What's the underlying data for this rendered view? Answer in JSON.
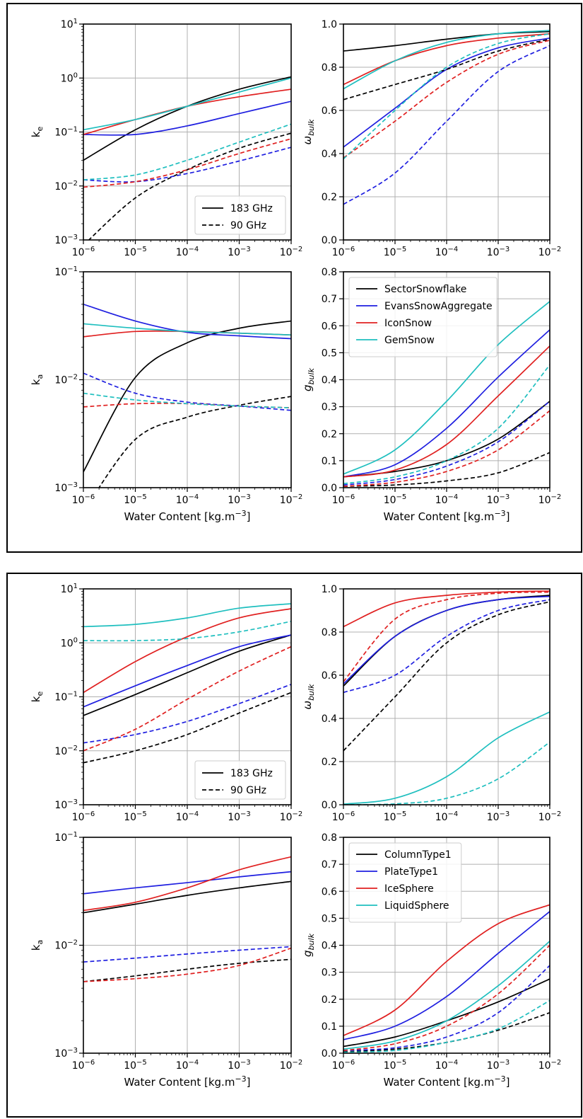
{
  "colors": {
    "k": "#000000",
    "b": "#1f1fe0",
    "r": "#e02020",
    "c": "#1fbfbf"
  },
  "legend_freq": [
    {
      "label": "183 GHz",
      "dash": "solid"
    },
    {
      "label": "90 GHz",
      "dash": "dashed"
    }
  ],
  "figures": [
    {
      "legend_habits": [
        {
          "label": "SectorSnowflake",
          "color": "k"
        },
        {
          "label": "EvansSnowAggregate",
          "color": "b"
        },
        {
          "label": "IconSnow",
          "color": "r"
        },
        {
          "label": "GemSnow",
          "color": "c"
        }
      ]
    },
    {
      "legend_habits": [
        {
          "label": "ColumnType1",
          "color": "k"
        },
        {
          "label": "PlateType1",
          "color": "b"
        },
        {
          "label": "IceSphere",
          "color": "r"
        },
        {
          "label": "LiquidSphere",
          "color": "c"
        }
      ]
    }
  ],
  "chart_data": [
    {
      "figure": 1,
      "panel": "ke",
      "type": "line",
      "ylabel": "k_e",
      "xlabel": "",
      "xscale": "log",
      "yscale": "log",
      "xlim": [
        1e-06,
        0.01
      ],
      "ylim": [
        0.001,
        10
      ],
      "legend": "freq",
      "legend_position": "lower-right",
      "grid": true,
      "x": [
        1e-06,
        1e-05,
        0.0001,
        0.001,
        0.01
      ],
      "series": [
        {
          "color": "k",
          "dash": "solid",
          "values": [
            0.03,
            0.11,
            0.3,
            0.62,
            1.05
          ]
        },
        {
          "color": "b",
          "dash": "solid",
          "values": [
            0.09,
            0.09,
            0.13,
            0.22,
            0.37
          ]
        },
        {
          "color": "r",
          "dash": "solid",
          "values": [
            0.09,
            0.17,
            0.3,
            0.45,
            0.62
          ]
        },
        {
          "color": "c",
          "dash": "solid",
          "values": [
            0.11,
            0.17,
            0.3,
            0.55,
            1.0
          ]
        },
        {
          "color": "k",
          "dash": "dashed",
          "values": [
            0.0008,
            0.006,
            0.02,
            0.05,
            0.095
          ]
        },
        {
          "color": "b",
          "dash": "dashed",
          "values": [
            0.013,
            0.012,
            0.017,
            0.029,
            0.052
          ]
        },
        {
          "color": "r",
          "dash": "dashed",
          "values": [
            0.0095,
            0.012,
            0.02,
            0.04,
            0.075
          ]
        },
        {
          "color": "c",
          "dash": "dashed",
          "values": [
            0.013,
            0.016,
            0.03,
            0.065,
            0.14
          ]
        }
      ]
    },
    {
      "figure": 1,
      "panel": "omega",
      "type": "line",
      "ylabel": "ω_bulk",
      "xlabel": "",
      "xscale": "log",
      "yscale": "linear",
      "xlim": [
        1e-06,
        0.01
      ],
      "ylim": [
        0,
        1.0
      ],
      "legend": "none",
      "grid": true,
      "x": [
        1e-06,
        1e-05,
        0.0001,
        0.001,
        0.01
      ],
      "series": [
        {
          "color": "k",
          "dash": "solid",
          "values": [
            0.875,
            0.9,
            0.93,
            0.955,
            0.965
          ]
        },
        {
          "color": "b",
          "dash": "solid",
          "values": [
            0.43,
            0.61,
            0.79,
            0.89,
            0.935
          ]
        },
        {
          "color": "r",
          "dash": "solid",
          "values": [
            0.72,
            0.83,
            0.9,
            0.935,
            0.955
          ]
        },
        {
          "color": "c",
          "dash": "solid",
          "values": [
            0.7,
            0.83,
            0.915,
            0.955,
            0.97
          ]
        },
        {
          "color": "k",
          "dash": "dashed",
          "values": [
            0.65,
            0.72,
            0.79,
            0.875,
            0.93
          ]
        },
        {
          "color": "b",
          "dash": "dashed",
          "values": [
            0.165,
            0.31,
            0.55,
            0.78,
            0.9
          ]
        },
        {
          "color": "r",
          "dash": "dashed",
          "values": [
            0.38,
            0.55,
            0.73,
            0.86,
            0.925
          ]
        },
        {
          "color": "c",
          "dash": "dashed",
          "values": [
            0.375,
            0.6,
            0.8,
            0.91,
            0.955
          ]
        }
      ]
    },
    {
      "figure": 1,
      "panel": "ka",
      "type": "line",
      "ylabel": "k_a",
      "xlabel": "Water Content [kg.m^{-3}]",
      "xscale": "log",
      "yscale": "log",
      "xlim": [
        1e-06,
        0.01
      ],
      "ylim": [
        0.001,
        0.1
      ],
      "legend": "none",
      "grid": true,
      "x": [
        1e-06,
        1e-05,
        0.0001,
        0.001,
        0.01
      ],
      "series": [
        {
          "color": "k",
          "dash": "solid",
          "values": [
            0.0014,
            0.0105,
            0.022,
            0.03,
            0.035
          ]
        },
        {
          "color": "b",
          "dash": "solid",
          "values": [
            0.05,
            0.035,
            0.0275,
            0.0255,
            0.024
          ]
        },
        {
          "color": "r",
          "dash": "solid",
          "values": [
            0.025,
            0.028,
            0.028,
            0.027,
            0.026
          ]
        },
        {
          "color": "c",
          "dash": "solid",
          "values": [
            0.033,
            0.03,
            0.028,
            0.027,
            0.026
          ]
        },
        {
          "color": "k",
          "dash": "dashed",
          "values": [
            0.0006,
            0.0028,
            0.0045,
            0.0058,
            0.007
          ]
        },
        {
          "color": "b",
          "dash": "dashed",
          "values": [
            0.0115,
            0.0075,
            0.0062,
            0.0057,
            0.0052
          ]
        },
        {
          "color": "r",
          "dash": "dashed",
          "values": [
            0.0056,
            0.006,
            0.006,
            0.0057,
            0.0055
          ]
        },
        {
          "color": "c",
          "dash": "dashed",
          "values": [
            0.0075,
            0.0065,
            0.006,
            0.0057,
            0.0055
          ]
        }
      ]
    },
    {
      "figure": 1,
      "panel": "g",
      "type": "line",
      "ylabel": "g_bulk",
      "xlabel": "Water Content [kg.m^{-3}]",
      "xscale": "log",
      "yscale": "linear",
      "xlim": [
        1e-06,
        0.01
      ],
      "ylim": [
        0,
        0.8
      ],
      "legend": "habits",
      "legend_position": "upper-left",
      "grid": true,
      "x": [
        1e-06,
        1e-05,
        0.0001,
        0.001,
        0.01
      ],
      "series": [
        {
          "color": "k",
          "dash": "solid",
          "values": [
            0.04,
            0.06,
            0.1,
            0.18,
            0.32
          ]
        },
        {
          "color": "b",
          "dash": "solid",
          "values": [
            0.04,
            0.085,
            0.22,
            0.41,
            0.585
          ]
        },
        {
          "color": "r",
          "dash": "solid",
          "values": [
            0.04,
            0.065,
            0.16,
            0.34,
            0.525
          ]
        },
        {
          "color": "c",
          "dash": "solid",
          "values": [
            0.05,
            0.14,
            0.32,
            0.53,
            0.69
          ]
        },
        {
          "color": "k",
          "dash": "dashed",
          "values": [
            0.005,
            0.01,
            0.025,
            0.055,
            0.13
          ]
        },
        {
          "color": "b",
          "dash": "dashed",
          "values": [
            0.01,
            0.03,
            0.08,
            0.17,
            0.32
          ]
        },
        {
          "color": "r",
          "dash": "dashed",
          "values": [
            0.005,
            0.02,
            0.06,
            0.14,
            0.285
          ]
        },
        {
          "color": "c",
          "dash": "dashed",
          "values": [
            0.015,
            0.04,
            0.1,
            0.22,
            0.455
          ]
        }
      ]
    },
    {
      "figure": 2,
      "panel": "ke",
      "type": "line",
      "ylabel": "k_e",
      "xlabel": "",
      "xscale": "log",
      "yscale": "log",
      "xlim": [
        1e-06,
        0.01
      ],
      "ylim": [
        0.001,
        10
      ],
      "legend": "freq",
      "legend_position": "lower-right",
      "grid": true,
      "x": [
        1e-06,
        1e-05,
        0.0001,
        0.001,
        0.01
      ],
      "series": [
        {
          "color": "k",
          "dash": "solid",
          "values": [
            0.045,
            0.11,
            0.28,
            0.7,
            1.4
          ]
        },
        {
          "color": "b",
          "dash": "solid",
          "values": [
            0.065,
            0.16,
            0.38,
            0.85,
            1.4
          ]
        },
        {
          "color": "r",
          "dash": "solid",
          "values": [
            0.12,
            0.45,
            1.3,
            2.9,
            4.3
          ]
        },
        {
          "color": "c",
          "dash": "solid",
          "values": [
            2.0,
            2.2,
            2.9,
            4.4,
            5.3
          ]
        },
        {
          "color": "k",
          "dash": "dashed",
          "values": [
            0.006,
            0.01,
            0.02,
            0.05,
            0.12
          ]
        },
        {
          "color": "b",
          "dash": "dashed",
          "values": [
            0.014,
            0.02,
            0.035,
            0.075,
            0.17
          ]
        },
        {
          "color": "r",
          "dash": "dashed",
          "values": [
            0.01,
            0.025,
            0.09,
            0.3,
            0.85
          ]
        },
        {
          "color": "c",
          "dash": "dashed",
          "values": [
            1.1,
            1.1,
            1.2,
            1.6,
            2.5
          ]
        }
      ]
    },
    {
      "figure": 2,
      "panel": "omega",
      "type": "line",
      "ylabel": "ω_bulk",
      "xlabel": "",
      "xscale": "log",
      "yscale": "linear",
      "xlim": [
        1e-06,
        0.01
      ],
      "ylim": [
        0,
        1.0
      ],
      "legend": "none",
      "grid": true,
      "x": [
        1e-06,
        1e-05,
        0.0001,
        0.001,
        0.01
      ],
      "series": [
        {
          "color": "k",
          "dash": "solid",
          "values": [
            0.55,
            0.78,
            0.9,
            0.95,
            0.97
          ]
        },
        {
          "color": "b",
          "dash": "solid",
          "values": [
            0.56,
            0.78,
            0.9,
            0.95,
            0.965
          ]
        },
        {
          "color": "r",
          "dash": "solid",
          "values": [
            0.825,
            0.935,
            0.97,
            0.985,
            0.99
          ]
        },
        {
          "color": "c",
          "dash": "solid",
          "values": [
            0.003,
            0.03,
            0.13,
            0.31,
            0.43
          ]
        },
        {
          "color": "k",
          "dash": "dashed",
          "values": [
            0.25,
            0.5,
            0.75,
            0.88,
            0.94
          ]
        },
        {
          "color": "b",
          "dash": "dashed",
          "values": [
            0.52,
            0.6,
            0.78,
            0.9,
            0.95
          ]
        },
        {
          "color": "r",
          "dash": "dashed",
          "values": [
            0.57,
            0.86,
            0.95,
            0.98,
            0.985
          ]
        },
        {
          "color": "c",
          "dash": "dashed",
          "values": [
            0.0005,
            0.004,
            0.03,
            0.12,
            0.29
          ]
        }
      ]
    },
    {
      "figure": 2,
      "panel": "ka",
      "type": "line",
      "ylabel": "k_a",
      "xlabel": "Water Content [kg.m^{-3}]",
      "xscale": "log",
      "yscale": "log",
      "xlim": [
        1e-06,
        0.01
      ],
      "ylim": [
        0.001,
        0.1
      ],
      "legend": "none",
      "grid": true,
      "x": [
        1e-06,
        1e-05,
        0.0001,
        0.001,
        0.01
      ],
      "series": [
        {
          "color": "k",
          "dash": "solid",
          "values": [
            0.02,
            0.024,
            0.029,
            0.034,
            0.039
          ]
        },
        {
          "color": "b",
          "dash": "solid",
          "values": [
            0.03,
            0.034,
            0.038,
            0.043,
            0.048
          ]
        },
        {
          "color": "r",
          "dash": "solid",
          "values": [
            0.021,
            0.025,
            0.034,
            0.05,
            0.066
          ]
        },
        {
          "color": "k",
          "dash": "dashed",
          "values": [
            0.0046,
            0.0052,
            0.006,
            0.0068,
            0.0074
          ]
        },
        {
          "color": "b",
          "dash": "dashed",
          "values": [
            0.007,
            0.0076,
            0.0083,
            0.009,
            0.0097
          ]
        },
        {
          "color": "r",
          "dash": "dashed",
          "values": [
            0.0046,
            0.0049,
            0.0054,
            0.0065,
            0.0094
          ]
        }
      ]
    },
    {
      "figure": 2,
      "panel": "g",
      "type": "line",
      "ylabel": "g_bulk",
      "xlabel": "Water Content [kg.m^{-3}]",
      "xscale": "log",
      "yscale": "linear",
      "xlim": [
        1e-06,
        0.01
      ],
      "ylim": [
        0,
        0.8
      ],
      "legend": "habits",
      "legend_position": "upper-left",
      "grid": true,
      "x": [
        1e-06,
        1e-05,
        0.0001,
        0.001,
        0.01
      ],
      "series": [
        {
          "color": "k",
          "dash": "solid",
          "values": [
            0.025,
            0.06,
            0.12,
            0.19,
            0.275
          ]
        },
        {
          "color": "b",
          "dash": "solid",
          "values": [
            0.05,
            0.1,
            0.21,
            0.37,
            0.525
          ]
        },
        {
          "color": "r",
          "dash": "solid",
          "values": [
            0.065,
            0.16,
            0.34,
            0.48,
            0.55
          ]
        },
        {
          "color": "c",
          "dash": "solid",
          "values": [
            0.015,
            0.045,
            0.12,
            0.25,
            0.415
          ]
        },
        {
          "color": "k",
          "dash": "dashed",
          "values": [
            0.005,
            0.015,
            0.04,
            0.085,
            0.15
          ]
        },
        {
          "color": "b",
          "dash": "dashed",
          "values": [
            0.01,
            0.02,
            0.06,
            0.15,
            0.325
          ]
        },
        {
          "color": "r",
          "dash": "dashed",
          "values": [
            0.01,
            0.035,
            0.1,
            0.22,
            0.4
          ]
        },
        {
          "color": "c",
          "dash": "dashed",
          "values": [
            0.003,
            0.01,
            0.04,
            0.09,
            0.195
          ]
        }
      ]
    }
  ]
}
